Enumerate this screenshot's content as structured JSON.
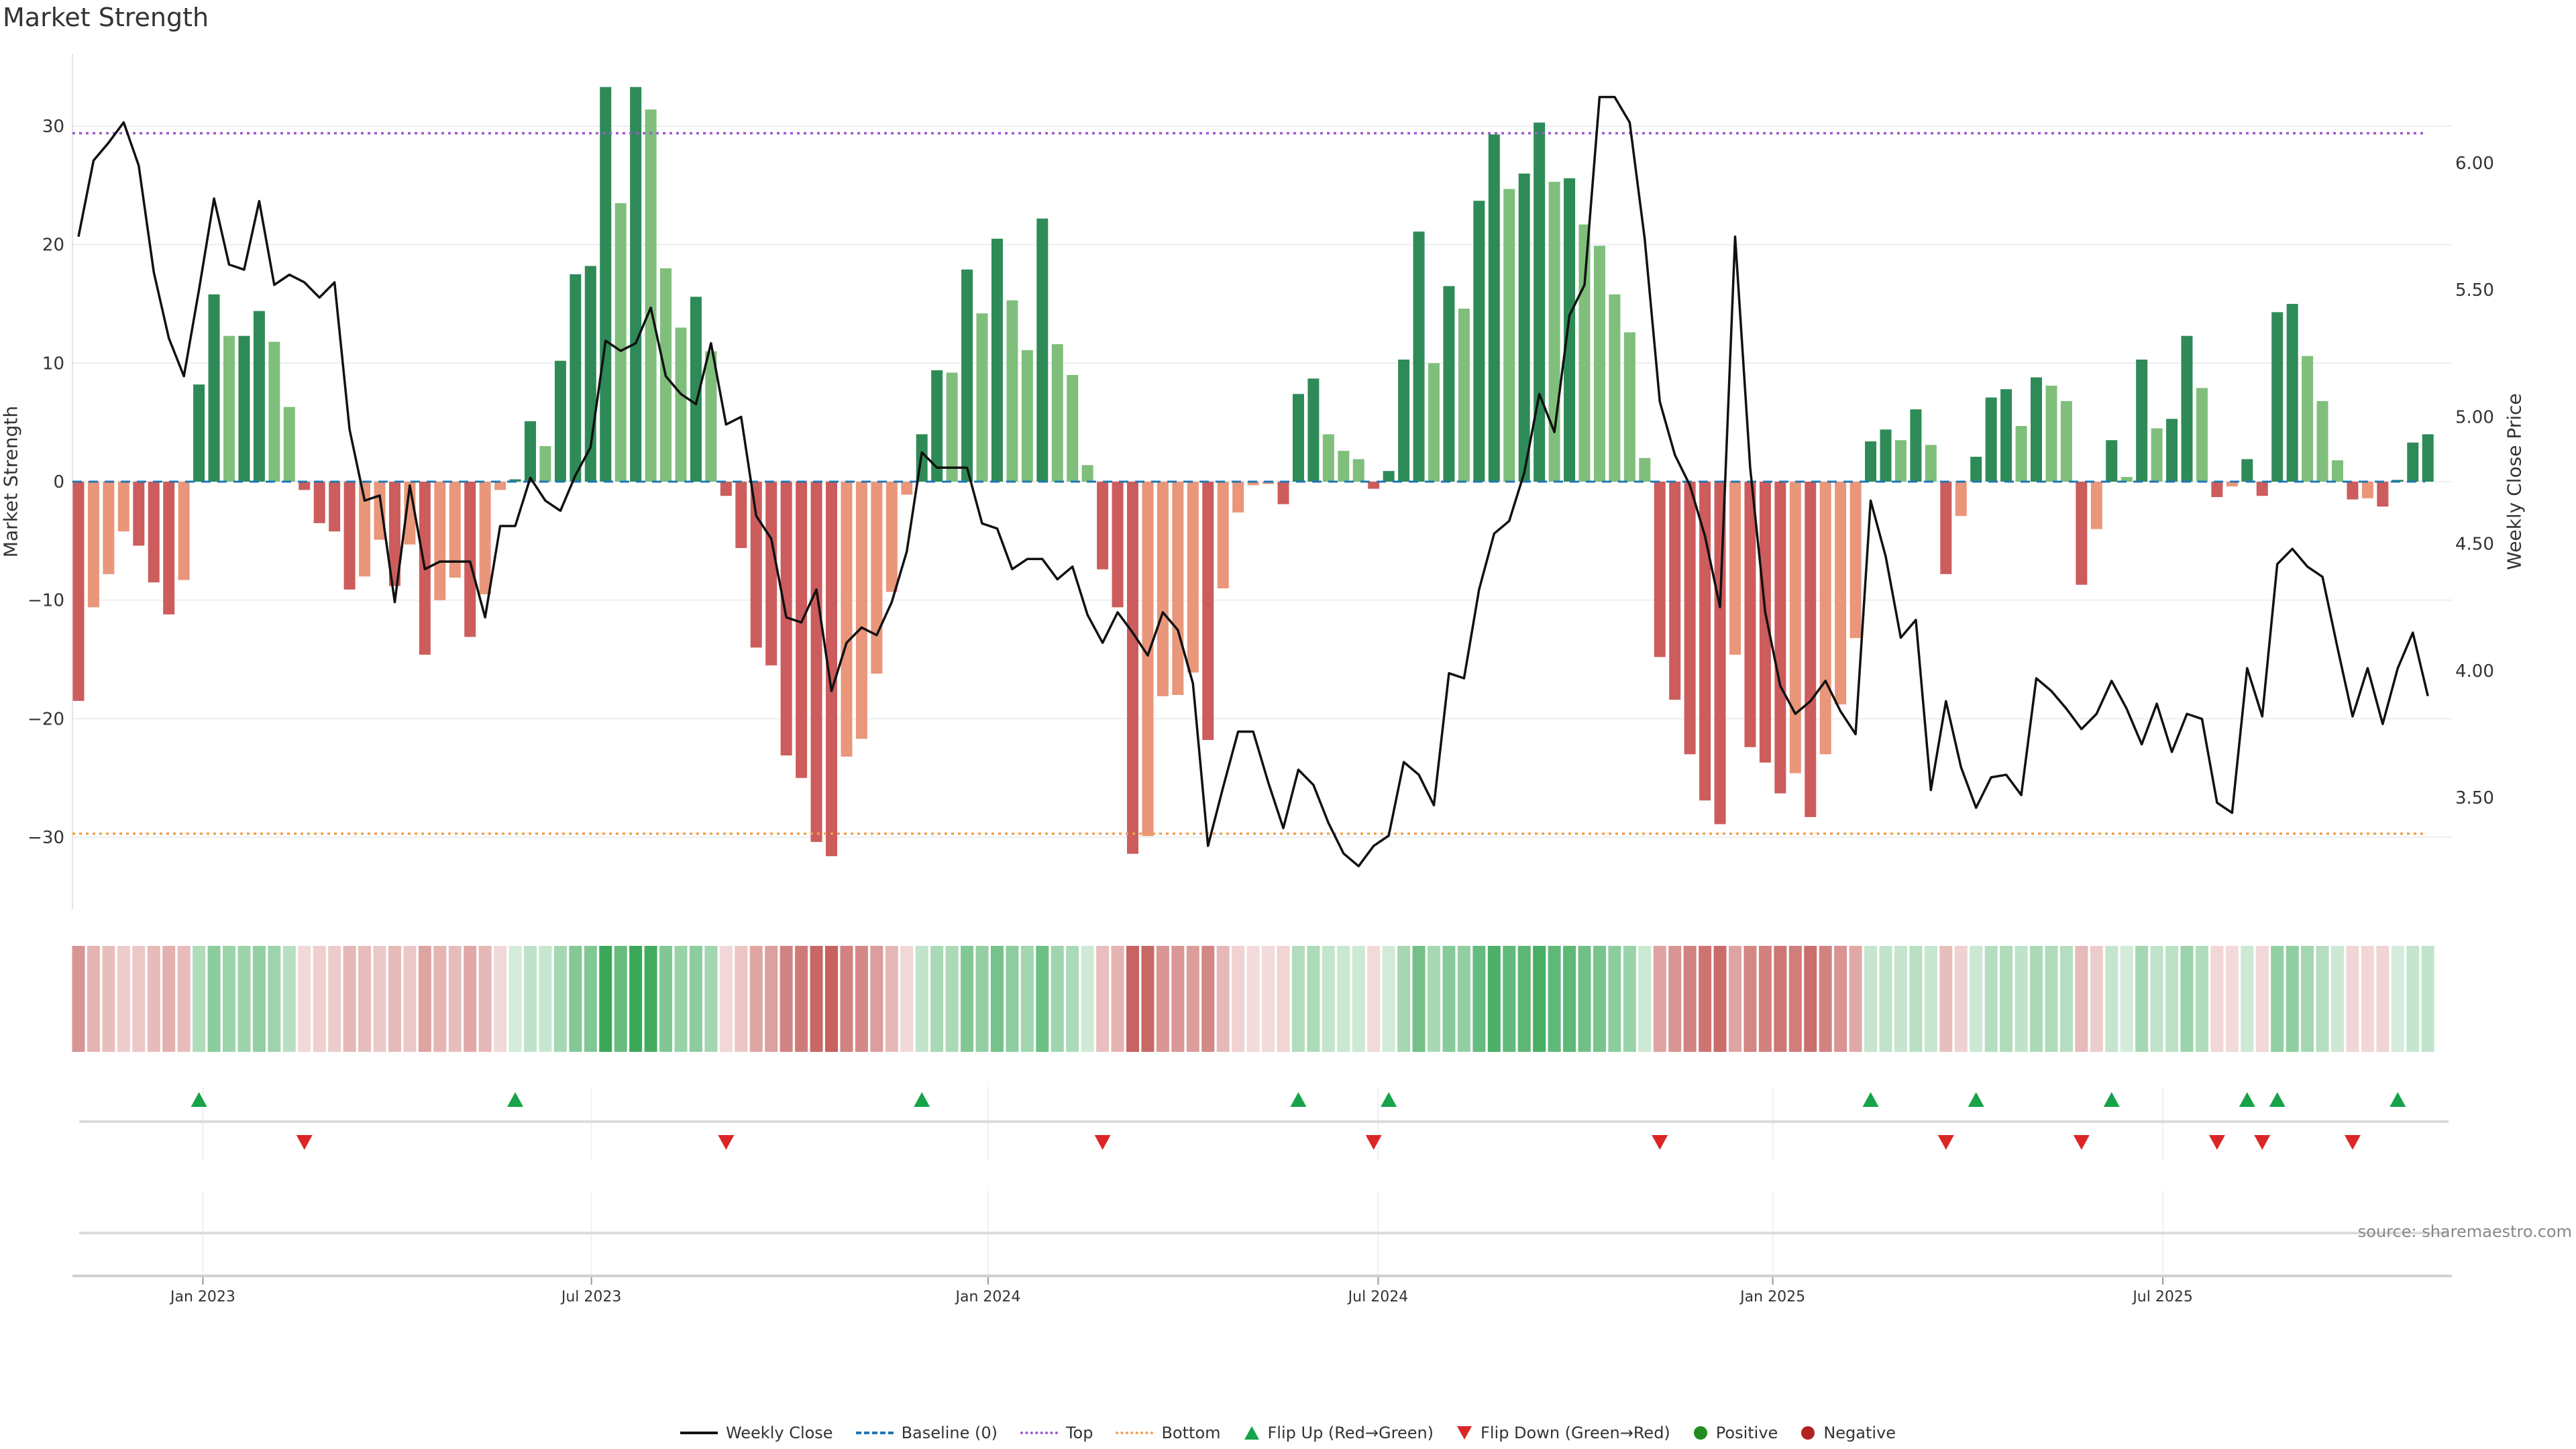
{
  "title": "Market Strength",
  "source": "source: sharemaestro.com",
  "colors": {
    "pos_strong": "#2e8b57",
    "pos_weak": "#7fbf7b",
    "neg_strong": "#cd5c5c",
    "neg_weak": "#e9967a",
    "line": "#111111",
    "baseline": "#1f77b4",
    "top": "#9b59d0",
    "bottom": "#f0a050",
    "flip_up": "#16a34a",
    "flip_down": "#dc2626",
    "positive": "#228b22",
    "negative": "#b22222",
    "heat_pos": "#2ca24c",
    "heat_neg": "#c0504d"
  },
  "legend": [
    {
      "label": "Weekly Close",
      "icon": "solid-line"
    },
    {
      "label": "Baseline (0)",
      "icon": "dashed-line"
    },
    {
      "label": "Top",
      "icon": "dotted-line"
    },
    {
      "label": "Bottom",
      "icon": "dotted-line"
    },
    {
      "label": "Flip Up (Red→Green)",
      "icon": "triangle-up"
    },
    {
      "label": "Flip Down (Green→Red)",
      "icon": "triangle-down"
    },
    {
      "label": "Positive",
      "icon": "circle"
    },
    {
      "label": "Negative",
      "icon": "circle"
    }
  ],
  "chart_data": {
    "type": "bar+line",
    "title": "Market Strength",
    "ylabel": "Market Strength",
    "y2label": "Weekly Close Price",
    "ylim": [
      -36,
      36
    ],
    "y2lim": [
      3.0,
      6.5
    ],
    "yticks": [
      30,
      20,
      10,
      0,
      -10,
      -20,
      -30
    ],
    "y2ticks": [
      "6.00",
      "5.50",
      "5.00",
      "4.50",
      "4.00",
      "3.50"
    ],
    "top_level": 29.4,
    "bottom_level": -29.7,
    "baseline": 0,
    "xticks": [
      {
        "label": "Jan 2023",
        "week": 9.26
      },
      {
        "label": "Jul 2023",
        "week": 35.06
      },
      {
        "label": "Jan 2024",
        "week": 61.4
      },
      {
        "label": "Jul 2024",
        "week": 87.3
      },
      {
        "label": "Jan 2025",
        "week": 113.5
      },
      {
        "label": "Jul 2025",
        "week": 139.4
      }
    ],
    "strength": [
      -18.5,
      -10.6,
      -7.8,
      -4.2,
      -5.4,
      -8.5,
      -11.2,
      -8.3,
      8.2,
      15.8,
      12.3,
      12.3,
      14.4,
      11.8,
      6.3,
      -0.7,
      -3.5,
      -4.2,
      -9.1,
      -8.0,
      -4.9,
      -8.8,
      -5.3,
      -14.6,
      -10.0,
      -8.1,
      -13.1,
      -9.5,
      -0.7,
      0.2,
      5.1,
      3.0,
      10.2,
      17.5,
      18.2,
      33.3,
      23.5,
      33.3,
      31.4,
      18.0,
      13.0,
      15.6,
      11.0,
      -1.2,
      -5.6,
      -14.0,
      -15.5,
      -23.1,
      -25.0,
      -30.4,
      -31.6,
      -23.2,
      -21.7,
      -16.2,
      -9.3,
      -1.1,
      4.0,
      9.4,
      9.2,
      17.9,
      14.2,
      20.5,
      15.3,
      11.1,
      22.2,
      11.6,
      9.0,
      1.4,
      -7.4,
      -10.6,
      -31.4,
      -29.9,
      -18.1,
      -18.0,
      -16.1,
      -21.8,
      -9.0,
      -2.6,
      -0.3,
      -0.2,
      -1.9,
      7.4,
      8.7,
      4.0,
      2.6,
      1.9,
      -0.6,
      0.9,
      10.3,
      21.1,
      10.0,
      16.5,
      14.6,
      23.7,
      29.3,
      24.7,
      26.0,
      30.3,
      25.3,
      25.6,
      21.7,
      19.9,
      15.8,
      12.6,
      2.0,
      -14.8,
      -18.4,
      -23.0,
      -26.9,
      -28.9,
      -14.6,
      -22.4,
      -23.7,
      -26.3,
      -24.6,
      -28.3,
      -23.0,
      -18.8,
      -13.2,
      3.4,
      4.4,
      3.5,
      6.1,
      3.1,
      -7.8,
      -2.9,
      2.1,
      7.1,
      7.8,
      4.7,
      8.8,
      8.1,
      6.8,
      -8.7,
      -4.0,
      3.5,
      0.4,
      10.3,
      4.5,
      5.3,
      12.3,
      7.9,
      -1.3,
      -0.4,
      1.9,
      -1.2,
      14.3,
      15.0,
      10.6,
      6.8,
      1.8,
      -1.5,
      -1.4,
      -2.1,
      0.15,
      3.3,
      4.0
    ],
    "weekly_close": [
      5.71,
      6.01,
      6.08,
      6.16,
      5.99,
      5.57,
      5.31,
      5.16,
      5.5,
      5.86,
      5.6,
      5.58,
      5.85,
      5.52,
      5.56,
      5.53,
      5.47,
      5.53,
      4.95,
      4.67,
      4.69,
      4.27,
      4.73,
      4.4,
      4.43,
      4.43,
      4.43,
      4.21,
      4.57,
      4.57,
      4.76,
      4.67,
      4.63,
      4.77,
      4.88,
      5.3,
      5.26,
      5.29,
      5.43,
      5.16,
      5.09,
      5.05,
      5.29,
      4.97,
      5.0,
      4.61,
      4.52,
      4.21,
      4.19,
      4.32,
      3.92,
      4.11,
      4.17,
      4.14,
      4.27,
      4.47,
      4.86,
      4.8,
      4.8,
      4.8,
      4.58,
      4.56,
      4.4,
      4.44,
      4.44,
      4.36,
      4.41,
      4.22,
      4.11,
      4.23,
      4.15,
      4.06,
      4.23,
      4.16,
      3.95,
      3.31,
      3.54,
      3.76,
      3.76,
      3.56,
      3.38,
      3.61,
      3.55,
      3.4,
      3.28,
      3.23,
      3.31,
      3.35,
      3.64,
      3.59,
      3.47,
      3.99,
      3.97,
      4.32,
      4.54,
      4.59,
      4.78,
      5.09,
      4.94,
      5.4,
      5.52,
      6.26,
      6.26,
      6.16,
      5.7,
      5.06,
      4.85,
      4.73,
      4.53,
      4.25,
      5.71,
      4.8,
      4.23,
      3.94,
      3.83,
      3.88,
      3.96,
      3.84,
      3.75,
      4.67,
      4.45,
      4.13,
      4.2,
      3.53,
      3.88,
      3.62,
      3.46,
      3.58,
      3.59,
      3.51,
      3.97,
      3.92,
      3.85,
      3.77,
      3.83,
      3.96,
      3.85,
      3.71,
      3.87,
      3.68,
      3.83,
      3.81,
      3.48,
      3.44,
      4.01,
      3.82,
      4.42,
      4.48,
      4.41,
      4.37,
      4.09,
      3.82,
      4.01,
      3.79,
      4.01,
      4.15,
      3.9
    ]
  }
}
